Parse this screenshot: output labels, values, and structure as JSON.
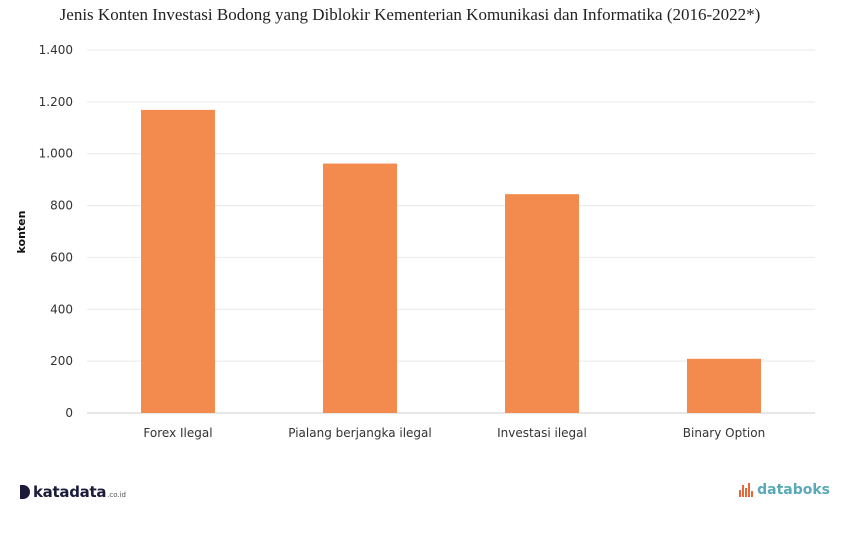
{
  "chart_data": {
    "type": "bar",
    "title": "Jenis Konten Investasi Bodong yang Diblokir Kementerian Komunikasi dan Informatika (2016-2022*)",
    "categories": [
      "Forex Ilegal",
      "Pialang berjangka ilegal",
      "Investasi ilegal",
      "Binary Option"
    ],
    "values": [
      1169,
      962,
      844,
      209
    ],
    "xlabel": "",
    "ylabel": "konten",
    "ylim": [
      0,
      1400
    ],
    "yticks": [
      0,
      200,
      400,
      600,
      800,
      1000,
      1200,
      1400
    ],
    "ytick_labels": [
      "0",
      "200",
      "400",
      "600",
      "800",
      "1.000",
      "1.200",
      "1.400"
    ],
    "grid": true,
    "bar_color": "#f28b4d"
  },
  "branding": {
    "left_name": "katadata",
    "left_suffix": ".co.id",
    "right_name": "databoks",
    "right_accent": "#e8663c",
    "right_color": "#5aa9b8"
  }
}
